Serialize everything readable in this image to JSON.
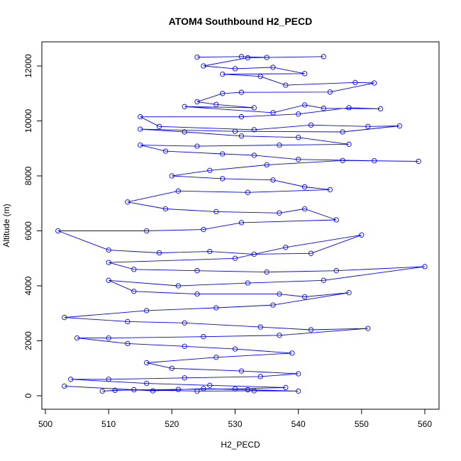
{
  "chart_data": {
    "type": "line",
    "title": "ATOM4 Southbound H2_PECD",
    "xlabel": "H2_PECD",
    "ylabel": "Altitude (m)",
    "xlim": [
      500,
      560
    ],
    "ylim": [
      0,
      12000
    ],
    "x_ticks": [
      "500",
      "510",
      "520",
      "530",
      "540",
      "550",
      "560"
    ],
    "y_ticks": [
      "0",
      "2000",
      "4000",
      "6000",
      "8000",
      "10000",
      "12000"
    ],
    "grid": false,
    "series": [
      {
        "color": "#0000ff",
        "marker": "open-circle",
        "points": [
          [
            524,
            12320
          ],
          [
            531,
            12340
          ],
          [
            535,
            12310
          ],
          [
            544,
            12340
          ],
          [
            532,
            12300
          ],
          [
            525,
            12000
          ],
          [
            530,
            11900
          ],
          [
            536,
            11950
          ],
          [
            541,
            11720
          ],
          [
            528,
            11700
          ],
          [
            534,
            11620
          ],
          [
            538,
            11300
          ],
          [
            549,
            11400
          ],
          [
            552,
            11380
          ],
          [
            545,
            11050
          ],
          [
            531,
            11040
          ],
          [
            528,
            11000
          ],
          [
            524,
            10700
          ],
          [
            527,
            10600
          ],
          [
            533,
            10480
          ],
          [
            522,
            10520
          ],
          [
            536,
            10300
          ],
          [
            541,
            10580
          ],
          [
            544,
            10460
          ],
          [
            553,
            10440
          ],
          [
            548,
            10480
          ],
          [
            540,
            10250
          ],
          [
            531,
            10150
          ],
          [
            515,
            10150
          ],
          [
            518,
            9800
          ],
          [
            533,
            9680
          ],
          [
            542,
            9850
          ],
          [
            551,
            9800
          ],
          [
            556,
            9820
          ],
          [
            547,
            9600
          ],
          [
            530,
            9620
          ],
          [
            515,
            9700
          ],
          [
            522,
            9600
          ],
          [
            531,
            9450
          ],
          [
            540,
            9400
          ],
          [
            548,
            9150
          ],
          [
            537,
            9120
          ],
          [
            524,
            9080
          ],
          [
            515,
            9120
          ],
          [
            519,
            8900
          ],
          [
            528,
            8800
          ],
          [
            533,
            8750
          ],
          [
            540,
            8600
          ],
          [
            552,
            8550
          ],
          [
            559,
            8530
          ],
          [
            547,
            8560
          ],
          [
            535,
            8400
          ],
          [
            526,
            8200
          ],
          [
            520,
            8000
          ],
          [
            528,
            7900
          ],
          [
            536,
            7850
          ],
          [
            541,
            7600
          ],
          [
            545,
            7500
          ],
          [
            532,
            7400
          ],
          [
            521,
            7450
          ],
          [
            513,
            7050
          ],
          [
            519,
            6800
          ],
          [
            527,
            6700
          ],
          [
            537,
            6650
          ],
          [
            541,
            6800
          ],
          [
            546,
            6400
          ],
          [
            531,
            6300
          ],
          [
            525,
            6050
          ],
          [
            516,
            6000
          ],
          [
            502,
            6000
          ],
          [
            510,
            5300
          ],
          [
            518,
            5200
          ],
          [
            526,
            5250
          ],
          [
            533,
            5150
          ],
          [
            542,
            5180
          ],
          [
            550,
            5850
          ],
          [
            538,
            5400
          ],
          [
            530,
            5000
          ],
          [
            510,
            4850
          ],
          [
            514,
            4600
          ],
          [
            524,
            4550
          ],
          [
            535,
            4500
          ],
          [
            546,
            4550
          ],
          [
            560,
            4700
          ],
          [
            544,
            4200
          ],
          [
            532,
            4100
          ],
          [
            521,
            4000
          ],
          [
            510,
            4200
          ],
          [
            514,
            3800
          ],
          [
            524,
            3700
          ],
          [
            537,
            3700
          ],
          [
            541,
            3600
          ],
          [
            548,
            3750
          ],
          [
            536,
            3300
          ],
          [
            527,
            3200
          ],
          [
            516,
            3100
          ],
          [
            503,
            2850
          ],
          [
            513,
            2700
          ],
          [
            522,
            2650
          ],
          [
            534,
            2500
          ],
          [
            542,
            2400
          ],
          [
            551,
            2450
          ],
          [
            537,
            2200
          ],
          [
            525,
            2150
          ],
          [
            510,
            2100
          ],
          [
            505,
            2100
          ],
          [
            513,
            1900
          ],
          [
            522,
            1800
          ],
          [
            530,
            1700
          ],
          [
            539,
            1550
          ],
          [
            527,
            1400
          ],
          [
            516,
            1200
          ],
          [
            520,
            1000
          ],
          [
            531,
            900
          ],
          [
            540,
            800
          ],
          [
            534,
            700
          ],
          [
            522,
            650
          ],
          [
            510,
            600
          ],
          [
            504,
            600
          ],
          [
            516,
            450
          ],
          [
            526,
            380
          ],
          [
            538,
            300
          ],
          [
            530,
            250
          ],
          [
            521,
            230
          ],
          [
            511,
            200
          ],
          [
            509,
            170
          ],
          [
            514,
            220
          ],
          [
            524,
            170
          ],
          [
            533,
            180
          ],
          [
            540,
            170
          ],
          [
            532,
            220
          ],
          [
            525,
            260
          ],
          [
            517,
            180
          ],
          [
            503,
            350
          ]
        ]
      }
    ]
  }
}
